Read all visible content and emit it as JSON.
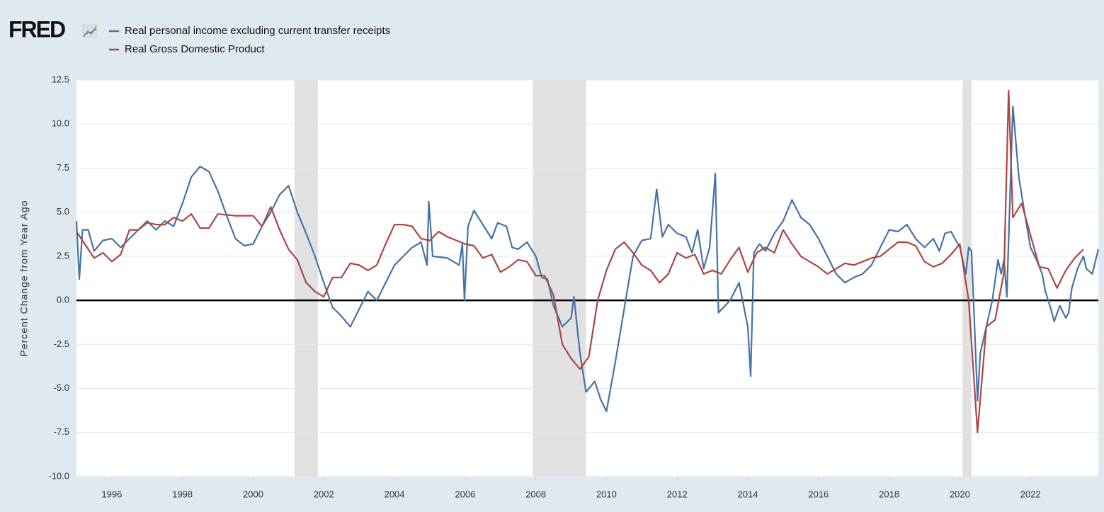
{
  "chart_data": {
    "type": "line",
    "logo": "FRED",
    "y_label": "Percent Change from Year Ago",
    "xlim": [
      1995,
      2023.92
    ],
    "xticks": [
      1996,
      1998,
      2000,
      2002,
      2004,
      2006,
      2008,
      2010,
      2012,
      2014,
      2016,
      2018,
      2020,
      2022
    ],
    "ylim": [
      -10,
      12.5
    ],
    "yticks": [
      {
        "value": -10,
        "label": "-10.0"
      },
      -7.5,
      {
        "value": -5,
        "label": "-5.0"
      },
      -2.5,
      {
        "value": 0,
        "label": "0.0"
      },
      2.5,
      {
        "value": 5,
        "label": "5.0"
      },
      7.5,
      {
        "value": 10,
        "label": "10.0"
      },
      12.5
    ],
    "grid": true,
    "recessions": [
      [
        2001.17,
        2001.83
      ],
      [
        2007.92,
        2009.42
      ],
      [
        2020.08,
        2020.33
      ]
    ],
    "series": [
      {
        "name": "Real personal income excluding current transfer receipts",
        "color": "#4572a7",
        "x": [
          1995.0,
          1995.08,
          1995.17,
          1995.33,
          1995.5,
          1995.75,
          1996.0,
          1996.25,
          1996.5,
          1996.75,
          1997.0,
          1997.25,
          1997.5,
          1997.75,
          1998.0,
          1998.25,
          1998.5,
          1998.75,
          1999.0,
          1999.25,
          1999.5,
          1999.75,
          2000.0,
          2000.25,
          2000.5,
          2000.75,
          2001.0,
          2001.25,
          2001.5,
          2001.75,
          2002.0,
          2002.25,
          2002.5,
          2002.75,
          2003.0,
          2003.25,
          2003.5,
          2003.75,
          2004.0,
          2004.25,
          2004.5,
          2004.75,
          2004.92,
          2004.97,
          2005.08,
          2005.5,
          2005.83,
          2005.92,
          2005.98,
          2006.08,
          2006.25,
          2006.5,
          2006.75,
          2006.92,
          2007.17,
          2007.33,
          2007.5,
          2007.75,
          2008.0,
          2008.17,
          2008.33,
          2008.5,
          2008.75,
          2009.0,
          2009.08,
          2009.25,
          2009.42,
          2009.67,
          2009.83,
          2010.0,
          2010.25,
          2010.5,
          2010.75,
          2011.0,
          2011.25,
          2011.42,
          2011.58,
          2011.75,
          2012.0,
          2012.25,
          2012.42,
          2012.58,
          2012.75,
          2012.92,
          2013.08,
          2013.17,
          2013.5,
          2013.75,
          2014.0,
          2014.08,
          2014.17,
          2014.33,
          2014.5,
          2014.75,
          2015.0,
          2015.25,
          2015.5,
          2015.75,
          2016.0,
          2016.25,
          2016.5,
          2016.75,
          2017.0,
          2017.25,
          2017.5,
          2017.75,
          2018.0,
          2018.25,
          2018.5,
          2018.75,
          2019.0,
          2019.25,
          2019.42,
          2019.58,
          2019.75,
          2020.0,
          2020.17,
          2020.25,
          2020.33,
          2020.5,
          2020.58,
          2020.75,
          2020.92,
          2021.08,
          2021.17,
          2021.25,
          2021.33,
          2021.5,
          2021.67,
          2021.83,
          2022.0,
          2022.17,
          2022.33,
          2022.42,
          2022.58,
          2022.67,
          2022.83,
          2023.0,
          2023.08,
          2023.17,
          2023.33,
          2023.5,
          2023.58,
          2023.75,
          2023.92
        ],
        "values": [
          4.5,
          1.2,
          4.0,
          4.0,
          2.8,
          3.4,
          3.5,
          3.0,
          3.5,
          4.0,
          4.5,
          4.0,
          4.5,
          4.2,
          5.5,
          7.0,
          7.6,
          7.3,
          6.2,
          4.8,
          3.5,
          3.1,
          3.2,
          4.2,
          5.0,
          6.0,
          6.5,
          5.0,
          3.8,
          2.5,
          1.0,
          -0.4,
          -0.9,
          -1.5,
          -0.5,
          0.5,
          0.0,
          1.0,
          2.0,
          2.5,
          3.0,
          3.3,
          2.0,
          5.6,
          2.5,
          2.4,
          2.0,
          3.2,
          0.0,
          4.2,
          5.1,
          4.3,
          3.5,
          4.4,
          4.2,
          3.0,
          2.9,
          3.3,
          2.5,
          1.3,
          1.2,
          -0.3,
          -1.5,
          -1.0,
          0.2,
          -3.0,
          -5.2,
          -4.6,
          -5.6,
          -6.3,
          -3.5,
          -0.5,
          2.5,
          3.4,
          3.5,
          6.3,
          3.6,
          4.3,
          3.8,
          3.6,
          2.7,
          4.0,
          1.8,
          3.0,
          7.2,
          -0.7,
          0.0,
          1.0,
          -1.5,
          -4.3,
          2.7,
          3.2,
          2.8,
          3.8,
          4.5,
          5.7,
          4.7,
          4.3,
          3.5,
          2.5,
          1.5,
          1.0,
          1.3,
          1.5,
          2.0,
          3.0,
          4.0,
          3.9,
          4.3,
          3.5,
          3.0,
          3.5,
          2.8,
          3.8,
          3.9,
          3.0,
          1.5,
          3.0,
          2.8,
          -5.7,
          -3.0,
          -1.5,
          0.0,
          2.3,
          1.5,
          2.3,
          0.2,
          11.0,
          7.0,
          5.0,
          3.0,
          2.3,
          1.5,
          0.5,
          -0.5,
          -1.2,
          -0.3,
          -1.0,
          -0.7,
          0.7,
          1.8,
          2.5,
          1.8,
          1.5,
          2.9
        ]
      },
      {
        "name": "Real Gross Domestic Product",
        "color": "#aa4643",
        "x": [
          1995.0,
          1995.5,
          1995.75,
          1996.0,
          1996.25,
          1996.5,
          1996.75,
          1997.0,
          1997.25,
          1997.5,
          1997.75,
          1998.0,
          1998.25,
          1998.5,
          1998.75,
          1999.0,
          1999.5,
          1999.75,
          2000.0,
          2000.25,
          2000.5,
          2000.75,
          2001.0,
          2001.25,
          2001.5,
          2001.75,
          2002.0,
          2002.25,
          2002.5,
          2002.75,
          2003.0,
          2003.25,
          2003.5,
          2003.75,
          2004.0,
          2004.25,
          2004.5,
          2004.75,
          2005.0,
          2005.25,
          2005.5,
          2005.75,
          2006.0,
          2006.25,
          2006.5,
          2006.75,
          2007.0,
          2007.25,
          2007.5,
          2007.75,
          2008.0,
          2008.25,
          2008.5,
          2008.75,
          2009.0,
          2009.25,
          2009.5,
          2009.75,
          2010.0,
          2010.25,
          2010.5,
          2010.75,
          2011.0,
          2011.25,
          2011.5,
          2011.75,
          2012.0,
          2012.25,
          2012.5,
          2012.75,
          2013.0,
          2013.25,
          2013.5,
          2013.75,
          2014.0,
          2014.25,
          2014.5,
          2014.75,
          2015.0,
          2015.25,
          2015.5,
          2015.75,
          2016.0,
          2016.25,
          2016.5,
          2016.75,
          2017.0,
          2017.25,
          2017.5,
          2017.75,
          2018.0,
          2018.25,
          2018.5,
          2018.75,
          2019.0,
          2019.25,
          2019.5,
          2019.75,
          2020.0,
          2020.25,
          2020.5,
          2020.75,
          2021.0,
          2021.25,
          2021.38,
          2021.5,
          2021.75,
          2022.0,
          2022.25,
          2022.5,
          2022.75,
          2023.0,
          2023.25,
          2023.5
        ],
        "values": [
          3.9,
          2.4,
          2.7,
          2.2,
          2.6,
          4.0,
          4.0,
          4.4,
          4.3,
          4.3,
          4.7,
          4.5,
          4.9,
          4.1,
          4.1,
          4.9,
          4.8,
          4.8,
          4.8,
          4.2,
          5.3,
          4.0,
          2.9,
          2.3,
          1.0,
          0.5,
          0.2,
          1.3,
          1.3,
          2.1,
          2.0,
          1.7,
          2.0,
          3.2,
          4.3,
          4.3,
          4.2,
          3.5,
          3.4,
          3.9,
          3.6,
          3.4,
          3.2,
          3.1,
          2.4,
          2.6,
          1.6,
          1.9,
          2.3,
          2.2,
          1.4,
          1.4,
          0.3,
          -2.5,
          -3.3,
          -3.9,
          -3.2,
          0.0,
          1.7,
          2.9,
          3.3,
          2.7,
          2.0,
          1.7,
          1.0,
          1.5,
          2.7,
          2.4,
          2.6,
          1.5,
          1.7,
          1.5,
          2.3,
          3.0,
          1.6,
          2.7,
          3.0,
          2.7,
          4.0,
          3.2,
          2.5,
          2.2,
          1.9,
          1.5,
          1.8,
          2.1,
          2.0,
          2.2,
          2.4,
          2.5,
          2.9,
          3.3,
          3.3,
          3.1,
          2.2,
          1.9,
          2.1,
          2.6,
          3.2,
          0.0,
          -7.5,
          -1.5,
          -1.1,
          1.6,
          11.9,
          4.7,
          5.5,
          3.7,
          1.9,
          1.8,
          0.7,
          1.7,
          2.4,
          2.9
        ]
      }
    ]
  }
}
